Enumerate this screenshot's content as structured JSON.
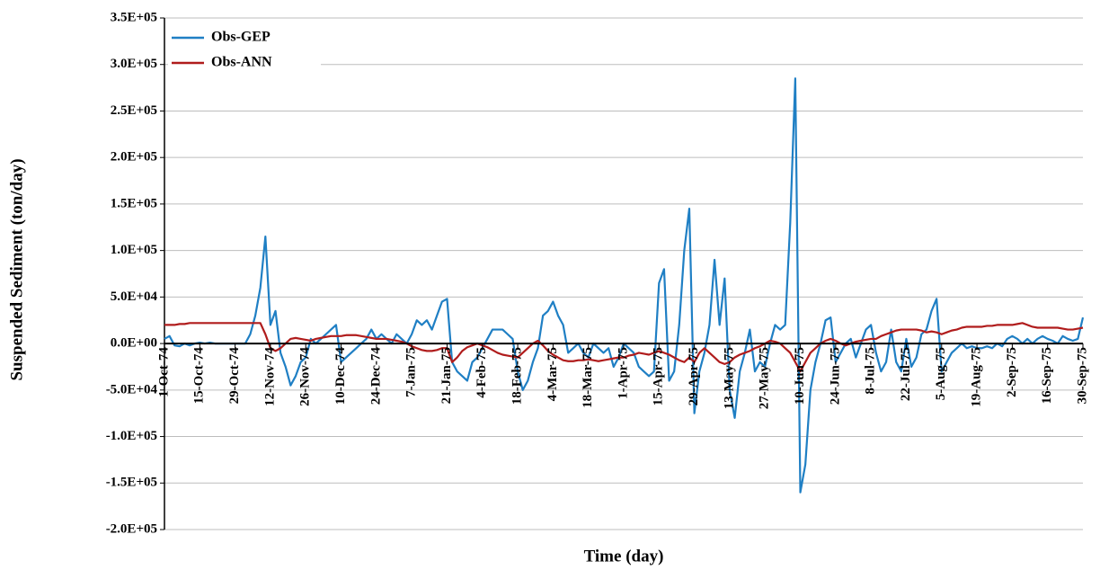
{
  "chart_data": {
    "type": "line",
    "x_label": "Time (day)",
    "y_label": "Suspended Sediment (ton/day)",
    "categories": [
      "1-Oct-74",
      null,
      null,
      null,
      null,
      null,
      null,
      "15-Oct-74",
      null,
      null,
      null,
      null,
      null,
      null,
      "29-Oct-74",
      null,
      null,
      null,
      null,
      null,
      null,
      "12-Nov-74",
      null,
      null,
      null,
      null,
      null,
      null,
      "26-Nov-74",
      null,
      null,
      null,
      null,
      null,
      null,
      "10-Dec-74",
      null,
      null,
      null,
      null,
      null,
      null,
      "24-Dec-74",
      null,
      null,
      null,
      null,
      null,
      null,
      "7-Jan-75",
      null,
      null,
      null,
      null,
      null,
      null,
      "21-Jan-75",
      null,
      null,
      null,
      null,
      null,
      null,
      "4-Feb-75",
      null,
      null,
      null,
      null,
      null,
      null,
      "18-Feb-75",
      null,
      null,
      null,
      null,
      null,
      null,
      "4-Mar-75",
      null,
      null,
      null,
      null,
      null,
      null,
      "18-Mar-75",
      null,
      null,
      null,
      null,
      null,
      null,
      "1-Apr-75",
      null,
      null,
      null,
      null,
      null,
      null,
      "15-Apr-75",
      null,
      null,
      null,
      null,
      null,
      null,
      "29-Apr-75",
      null,
      null,
      null,
      null,
      null,
      null,
      "13-May-75",
      null,
      null,
      null,
      null,
      null,
      null,
      "27-May-75",
      null,
      null,
      null,
      null,
      null,
      null,
      "10-Jun-75",
      null,
      null,
      null,
      null,
      null,
      null,
      "24-Jun-75",
      null,
      null,
      null,
      null,
      null,
      null,
      "8-Jul-75",
      null,
      null,
      null,
      null,
      null,
      null,
      "22-Jul-75",
      null,
      null,
      null,
      null,
      null,
      null,
      "5-Aug-75",
      null,
      null,
      null,
      null,
      null,
      null,
      "19-Aug-75",
      null,
      null,
      null,
      null,
      null,
      null,
      "2-Sep-75",
      null,
      null,
      null,
      null,
      null,
      null,
      "16-Sep-75",
      null,
      null,
      null,
      null,
      null,
      null,
      "30-Sep-75"
    ],
    "series": [
      {
        "name": "Obs-GEP",
        "color": "#1f7fc4",
        "values": [
          5000,
          8000,
          -2000,
          -3000,
          0,
          -2000,
          0,
          1000,
          0,
          1000,
          0,
          0,
          0,
          0,
          0,
          0,
          0,
          10000,
          30000,
          60000,
          115000,
          20000,
          35000,
          -10000,
          -25000,
          -45000,
          -35000,
          -20000,
          -15000,
          5000,
          0,
          5000,
          10000,
          15000,
          20000,
          -20000,
          -15000,
          -10000,
          -5000,
          0,
          5000,
          15000,
          5000,
          10000,
          5000,
          0,
          10000,
          5000,
          0,
          10000,
          25000,
          20000,
          25000,
          15000,
          30000,
          45000,
          48000,
          -20000,
          -30000,
          -35000,
          -40000,
          -20000,
          -15000,
          -5000,
          5000,
          15000,
          15000,
          15000,
          10000,
          5000,
          -30000,
          -50000,
          -40000,
          -20000,
          -5000,
          30000,
          35000,
          45000,
          30000,
          20000,
          -10000,
          -5000,
          0,
          -10000,
          -15000,
          0,
          -5000,
          -10000,
          -5000,
          -25000,
          -15000,
          0,
          -5000,
          -10000,
          -25000,
          -30000,
          -35000,
          -30000,
          65000,
          80000,
          -40000,
          -30000,
          20000,
          100000,
          145000,
          -75000,
          -30000,
          -10000,
          20000,
          90000,
          20000,
          70000,
          -50000,
          -80000,
          -30000,
          -10000,
          15000,
          -30000,
          -20000,
          -25000,
          0,
          20000,
          15000,
          20000,
          130000,
          285000,
          -160000,
          -130000,
          -50000,
          -20000,
          0,
          25000,
          28000,
          -20000,
          -10000,
          0,
          5000,
          -15000,
          0,
          15000,
          20000,
          -10000,
          -30000,
          -20000,
          15000,
          -20000,
          -30000,
          5000,
          -25000,
          -15000,
          10000,
          15000,
          35000,
          48000,
          -30000,
          -20000,
          -10000,
          -5000,
          0,
          -5000,
          -3000,
          -5000,
          -5000,
          -3000,
          -5000,
          0,
          -3000,
          5000,
          8000,
          5000,
          0,
          5000,
          0,
          5000,
          8000,
          5000,
          3000,
          0,
          8000,
          5000,
          3000,
          5000,
          28000
        ]
      },
      {
        "name": "Obs-ANN",
        "color": "#b01c1c",
        "values": [
          20000,
          20000,
          20000,
          21000,
          21000,
          22000,
          22000,
          22000,
          22000,
          22000,
          22000,
          22000,
          22000,
          22000,
          22000,
          22000,
          22000,
          22000,
          22000,
          22000,
          10000,
          -5000,
          -8000,
          -5000,
          0,
          5000,
          6000,
          5000,
          4000,
          3000,
          5000,
          6000,
          7000,
          8000,
          8000,
          8000,
          9000,
          9000,
          9000,
          8000,
          7000,
          6000,
          5000,
          5000,
          5000,
          4000,
          3000,
          2000,
          0,
          -3000,
          -5000,
          -7000,
          -8000,
          -8000,
          -7000,
          -5000,
          -5000,
          -20000,
          -15000,
          -8000,
          -4000,
          -2000,
          0,
          -2000,
          -4000,
          -7000,
          -10000,
          -12000,
          -13000,
          -14000,
          -15000,
          -10000,
          -5000,
          0,
          3000,
          -2000,
          -8000,
          -12000,
          -15000,
          -18000,
          -19000,
          -19000,
          -18000,
          -18000,
          -17000,
          -18000,
          -19000,
          -18000,
          -17000,
          -16000,
          -15000,
          -15000,
          -13000,
          -12000,
          -10000,
          -11000,
          -12000,
          -10000,
          -8000,
          -10000,
          -12000,
          -15000,
          -18000,
          -20000,
          -15000,
          -20000,
          -10000,
          -5000,
          -10000,
          -15000,
          -20000,
          -22000,
          -20000,
          -15000,
          -12000,
          -10000,
          -8000,
          -5000,
          -3000,
          0,
          3000,
          2000,
          0,
          -5000,
          -10000,
          -20000,
          -30000,
          -20000,
          -10000,
          -5000,
          0,
          3000,
          5000,
          3000,
          0,
          -2000,
          0,
          2000,
          3000,
          4000,
          5000,
          5000,
          8000,
          10000,
          12000,
          14000,
          15000,
          15000,
          15000,
          15000,
          14000,
          12000,
          13000,
          12000,
          10000,
          12000,
          14000,
          15000,
          17000,
          18000,
          18000,
          18000,
          18000,
          19000,
          19000,
          20000,
          20000,
          20000,
          20000,
          21000,
          22000,
          20000,
          18000,
          17000,
          17000,
          17000,
          17000,
          17000,
          16000,
          15000,
          15000,
          16000,
          17000
        ]
      }
    ],
    "ylim": [
      -200000,
      350000
    ],
    "yticks": [
      {
        "value": -200000,
        "label": "-2.0E+05"
      },
      {
        "value": -150000,
        "label": "-1.5E+05"
      },
      {
        "value": -100000,
        "label": "-1.0E+05"
      },
      {
        "value": -50000,
        "label": "-5.0E+04"
      },
      {
        "value": 0,
        "label": "0.0E+00"
      },
      {
        "value": 50000,
        "label": "5.0E+04"
      },
      {
        "value": 100000,
        "label": "1.0E+05"
      },
      {
        "value": 150000,
        "label": "1.5E+05"
      },
      {
        "value": 200000,
        "label": "2.0E+05"
      },
      {
        "value": 250000,
        "label": "2.5E+05"
      },
      {
        "value": 300000,
        "label": "3.0E+05"
      },
      {
        "value": 350000,
        "label": "3.5E+05"
      }
    ],
    "grid": true,
    "legend": "upper left"
  }
}
